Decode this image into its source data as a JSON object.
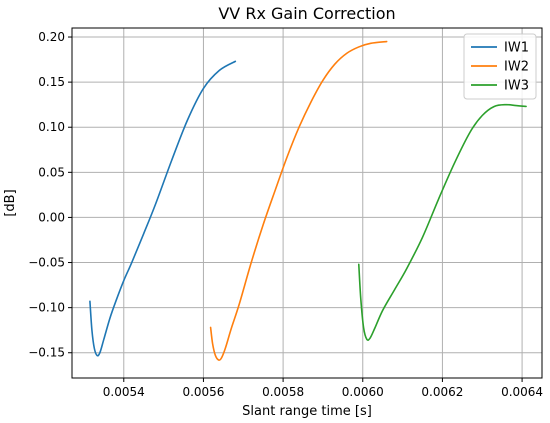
{
  "chart_data": {
    "type": "line",
    "title": "VV Rx Gain Correction",
    "xlabel": "Slant range time [s]",
    "ylabel": "[dB]",
    "xlim": [
      0.00527,
      0.00645
    ],
    "ylim": [
      -0.178,
      0.21
    ],
    "xticks": [
      0.0054,
      0.0056,
      0.0058,
      0.006,
      0.0062,
      0.0064
    ],
    "xtick_labels": [
      "0.0054",
      "0.0056",
      "0.0058",
      "0.0060",
      "0.0062",
      "0.0064"
    ],
    "yticks": [
      -0.15,
      -0.1,
      -0.05,
      0.0,
      0.05,
      0.1,
      0.15,
      0.2
    ],
    "ytick_labels": [
      "−0.15",
      "−0.10",
      "−0.05",
      "0.00",
      "0.05",
      "0.10",
      "0.15",
      "0.20"
    ],
    "grid": true,
    "legend_position": "top-right",
    "series": [
      {
        "name": "IW1",
        "color": "#1f77b4",
        "x": [
          0.005315,
          0.00532,
          0.005326,
          0.005333,
          0.00534,
          0.00535,
          0.005365,
          0.00538,
          0.0054,
          0.00542,
          0.00545,
          0.00548,
          0.00552,
          0.00556,
          0.0056,
          0.00564,
          0.00568
        ],
        "y": [
          -0.093,
          -0.125,
          -0.145,
          -0.153,
          -0.15,
          -0.135,
          -0.112,
          -0.093,
          -0.07,
          -0.05,
          -0.018,
          0.015,
          0.063,
          0.108,
          0.143,
          0.163,
          0.173
        ]
      },
      {
        "name": "IW2",
        "color": "#ff7f0e",
        "x": [
          0.005618,
          0.005623,
          0.00563,
          0.005638,
          0.005645,
          0.005655,
          0.00567,
          0.00569,
          0.00572,
          0.00575,
          0.00578,
          0.00581,
          0.00584,
          0.00587,
          0.0059,
          0.00593,
          0.00596,
          0.00599,
          0.00602,
          0.00606
        ],
        "y": [
          -0.122,
          -0.14,
          -0.153,
          -0.158,
          -0.156,
          -0.145,
          -0.123,
          -0.096,
          -0.05,
          -0.008,
          0.03,
          0.067,
          0.1,
          0.128,
          0.152,
          0.17,
          0.182,
          0.189,
          0.193,
          0.195
        ]
      },
      {
        "name": "IW3",
        "color": "#2ca02c",
        "x": [
          0.00599,
          0.005995,
          0.006002,
          0.00601,
          0.006018,
          0.00603,
          0.00605,
          0.00608,
          0.00611,
          0.00615,
          0.00619,
          0.00623,
          0.00627,
          0.0063,
          0.00633,
          0.00636,
          0.006385,
          0.00641
        ],
        "y": [
          -0.052,
          -0.09,
          -0.122,
          -0.135,
          -0.134,
          -0.123,
          -0.103,
          -0.08,
          -0.057,
          -0.022,
          0.02,
          0.06,
          0.095,
          0.113,
          0.123,
          0.125,
          0.124,
          0.123
        ]
      }
    ]
  }
}
